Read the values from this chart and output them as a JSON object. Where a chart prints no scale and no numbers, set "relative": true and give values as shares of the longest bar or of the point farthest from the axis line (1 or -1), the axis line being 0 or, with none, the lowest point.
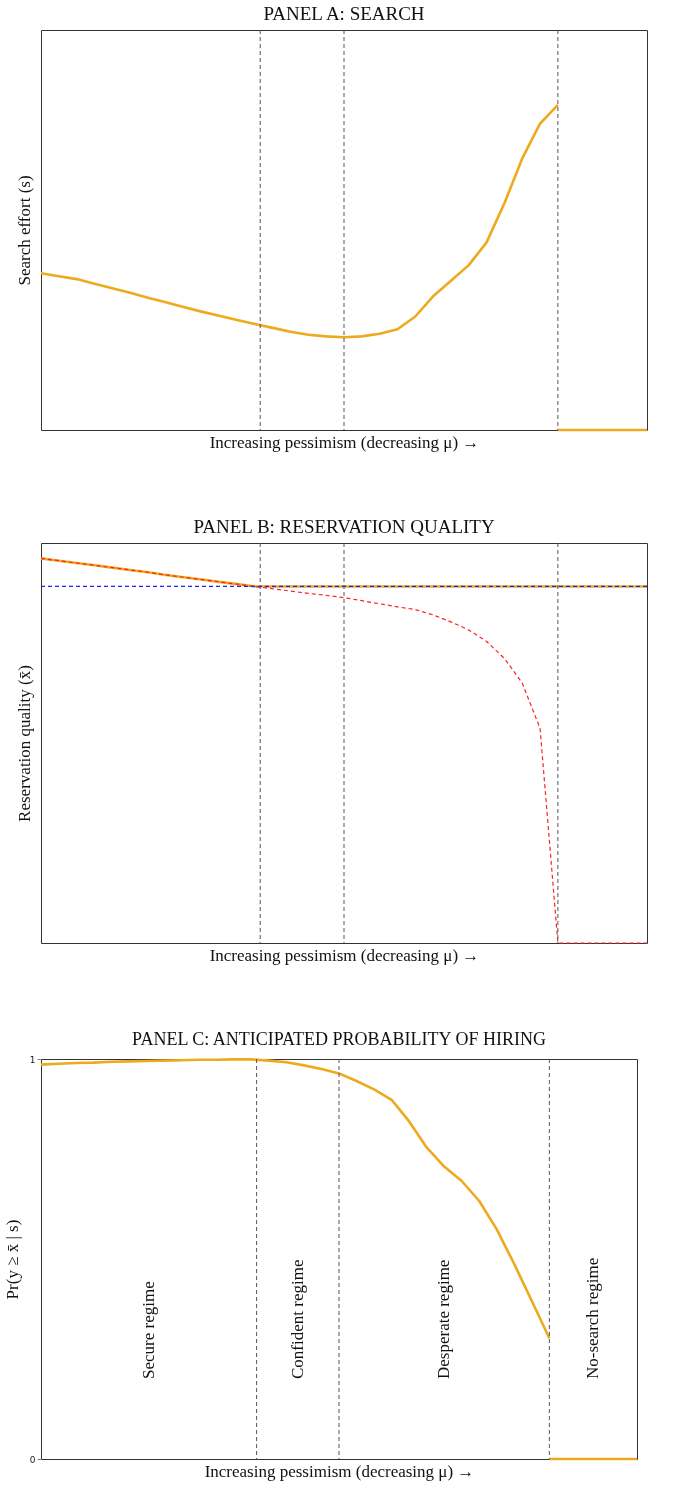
{
  "chart_data": [
    {
      "type": "line",
      "title": "PANEL A: SEARCH",
      "xlabel": "Increasing pessimism (decreasing μ) →",
      "ylabel": "Search effort (s)",
      "relative": true,
      "tick_labels": false,
      "categories": [
        null,
        null,
        null,
        null,
        null,
        null,
        null,
        null,
        null,
        null,
        null,
        null,
        null,
        null,
        null,
        null,
        null,
        null,
        null,
        null,
        null,
        null,
        null,
        null,
        null,
        null,
        null,
        null,
        null,
        null,
        null,
        null,
        null,
        null,
        null
      ],
      "series": [
        {
          "color": "#ecaa1c",
          "values": [
            0.482,
            0.473,
            0.464,
            0.45,
            0.436,
            0.422,
            0.407,
            0.393,
            0.378,
            0.364,
            0.351,
            0.338,
            0.326,
            0.314,
            0.302,
            0.293,
            0.288,
            0.285,
            0.288,
            0.296,
            0.31,
            0.349,
            0.411,
            0.459,
            0.507,
            0.577,
            0.697,
            0.835,
            0.942,
            1.0,
            null,
            null,
            null,
            null,
            null
          ]
        },
        {
          "color": "#ecaa1c",
          "values": [
            null,
            null,
            null,
            null,
            null,
            null,
            null,
            null,
            null,
            null,
            null,
            null,
            null,
            null,
            null,
            null,
            null,
            null,
            null,
            null,
            null,
            null,
            null,
            null,
            null,
            null,
            null,
            null,
            null,
            0,
            0,
            0,
            0,
            0,
            0
          ]
        }
      ]
    },
    {
      "type": "line",
      "title": "PANEL B: RESERVATION QUALITY",
      "xlabel": "Increasing pessimism (decreasing μ) →",
      "ylabel": "Reservation quality (x̄)",
      "relative": true,
      "tick_labels": false,
      "categories": [
        null,
        null,
        null,
        null,
        null,
        null,
        null,
        null,
        null,
        null,
        null,
        null,
        null,
        null,
        null,
        null,
        null,
        null,
        null,
        null,
        null,
        null,
        null,
        null,
        null,
        null,
        null,
        null,
        null,
        null,
        null,
        null,
        null,
        null,
        null
      ],
      "series": [
        {
          "color": "#ecaa1c",
          "values": [
            1.0,
            0.994,
            0.988,
            0.982,
            0.976,
            0.97,
            0.964,
            0.957,
            0.951,
            0.945,
            0.939,
            0.933,
            0.927,
            0.927,
            0.927,
            0.927,
            0.927,
            0.927,
            0.927,
            0.927,
            0.927,
            0.927,
            0.927,
            0.927,
            0.927,
            0.927,
            0.927,
            0.927,
            0.927,
            0.927,
            0.927,
            0.927,
            0.927,
            0.927,
            0.927
          ]
        },
        {
          "color": "#ff2020",
          "line_style": "dashed",
          "values": [
            1.0,
            0.994,
            0.988,
            0.982,
            0.976,
            0.97,
            0.964,
            0.957,
            0.951,
            0.945,
            0.939,
            0.933,
            0.927,
            0.921,
            0.915,
            0.909,
            0.904,
            0.898,
            0.89,
            0.882,
            0.874,
            0.867,
            0.853,
            0.835,
            0.814,
            0.784,
            0.74,
            0.676,
            0.558,
            0,
            0,
            0,
            0,
            0,
            0
          ]
        },
        {
          "color": "#2020ff",
          "line_style": "dashed",
          "values": [
            0.927,
            0.927,
            0.927,
            0.927,
            0.927,
            0.927,
            0.927,
            0.927,
            0.927,
            0.927,
            0.927,
            0.927,
            0.927,
            0.927,
            0.927,
            0.927,
            0.927,
            0.927,
            0.927,
            0.927,
            0.927,
            0.927,
            0.927,
            0.927,
            0.927,
            0.927,
            0.927,
            0.927,
            0.927,
            0.927,
            0.927,
            0.927,
            0.927,
            0.927,
            0.927
          ]
        }
      ]
    },
    {
      "type": "line",
      "title": "PANEL C: ANTICIPATED PROBABILITY OF HIRING",
      "xlabel": "Increasing pessimism (decreasing μ) →",
      "ylabel": "Pr(y ≥ x̄ | s)",
      "ylim": [
        0,
        1
      ],
      "yticks": [
        0,
        1
      ],
      "tick_labels": "y",
      "categories": [
        null,
        null,
        null,
        null,
        null,
        null,
        null,
        null,
        null,
        null,
        null,
        null,
        null,
        null,
        null,
        null,
        null,
        null,
        null,
        null,
        null,
        null,
        null,
        null,
        null,
        null,
        null,
        null,
        null,
        null,
        null,
        null,
        null,
        null,
        null
      ],
      "series": [
        {
          "color": "#ecaa1c",
          "values": [
            0.986,
            0.988,
            0.99,
            0.991,
            0.993,
            0.994,
            0.995,
            0.996,
            0.997,
            0.998,
            0.998,
            0.999,
            0.999,
            0.996,
            0.992,
            0.984,
            0.975,
            0.964,
            0.945,
            0.924,
            0.898,
            0.844,
            0.779,
            0.731,
            0.695,
            0.645,
            0.574,
            0.487,
            0.395,
            0.302,
            null,
            null,
            null,
            null,
            null
          ]
        },
        {
          "color": "#ecaa1c",
          "values": [
            null,
            null,
            null,
            null,
            null,
            null,
            null,
            null,
            null,
            null,
            null,
            null,
            null,
            null,
            null,
            null,
            null,
            null,
            null,
            null,
            null,
            null,
            null,
            null,
            null,
            null,
            null,
            null,
            null,
            0,
            0,
            0,
            0,
            0,
            0
          ]
        }
      ],
      "annotations": [
        "Secure regime",
        "Confident regime",
        "Desperate regime",
        "No-search regime"
      ]
    }
  ]
}
